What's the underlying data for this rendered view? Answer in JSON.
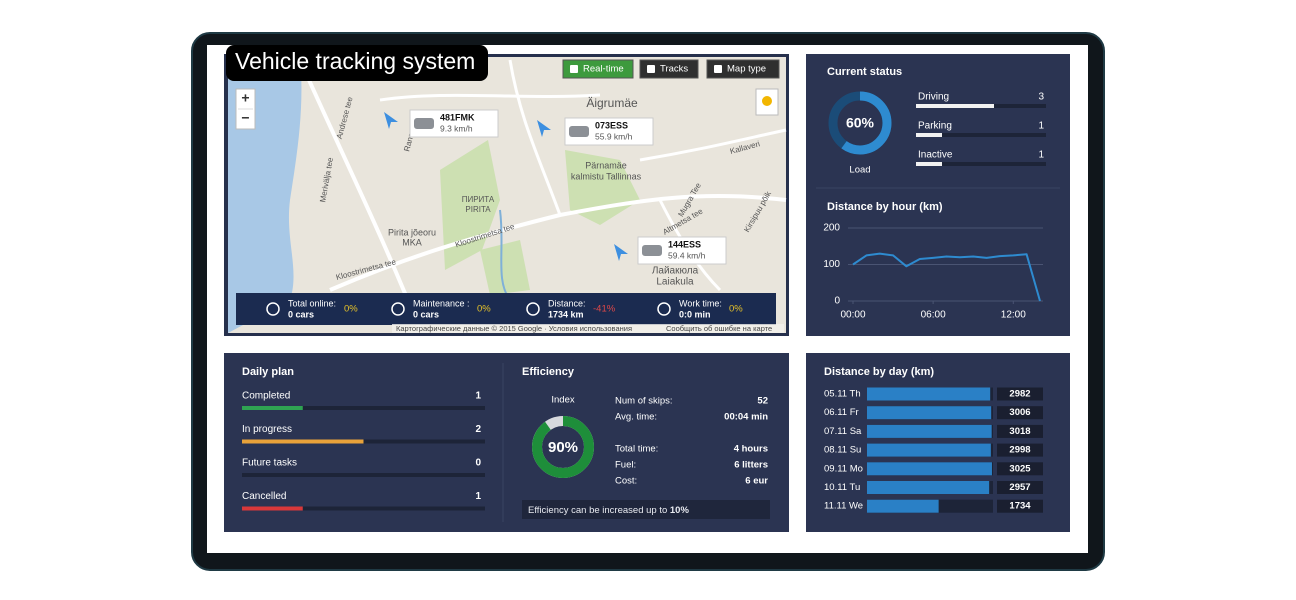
{
  "title": "Vehicle tracking system",
  "map": {
    "buttons": [
      "Real-time",
      "Tracks",
      "Map type"
    ],
    "zoom": [
      "+",
      "−"
    ],
    "places": [
      "Äigrumäe",
      "Pärnamäe",
      "kalmistu Tallinnas",
      "ПИРИТА",
      "PIRITA",
      "Pirita jõeoru",
      "MKA",
      "Kloostrimetsa tee",
      "Kloostrimetsa tee",
      "Лайакюла",
      "Laiakula",
      "Kallaveri",
      "Mugra Tee",
      "Altmetsa tee",
      "Kirsipuu põik",
      "Andrese tee",
      "Merivälja tee",
      "Ranna"
    ],
    "vehicles": [
      {
        "plate": "481FMK",
        "speed": "9.3 km/h"
      },
      {
        "plate": "073ESS",
        "speed": "55.9 km/h"
      },
      {
        "plate": "144ESS",
        "speed": "59.4 km/h"
      }
    ],
    "summary": [
      {
        "label": "Total online:",
        "value": "0 cars",
        "change": "0%"
      },
      {
        "label": "Maintenance :",
        "value": "0 cars",
        "change": "0%"
      },
      {
        "label": "Distance:",
        "value": "1734 km",
        "change": "-41%"
      },
      {
        "label": "Work time:",
        "value": "0:0 min",
        "change": "0%"
      }
    ],
    "attribution": "Картографические данные © 2015 Google · Условия использования",
    "report": "Сообщить об ошибке на карте"
  },
  "current_status": {
    "title": "Current status",
    "load": {
      "value": 60,
      "label": "60%",
      "caption": "Load"
    },
    "items": [
      {
        "name": "Driving",
        "value": 3
      },
      {
        "name": "Parking",
        "value": 1
      },
      {
        "name": "Inactive",
        "value": 1
      }
    ]
  },
  "distance_by_hour": {
    "type": "line",
    "title": "Distance by hour (km)",
    "x": [
      0,
      1,
      2,
      3,
      4,
      5,
      6,
      7,
      8,
      9,
      10,
      11,
      12,
      13,
      14
    ],
    "values": [
      100,
      125,
      130,
      125,
      95,
      115,
      118,
      122,
      120,
      122,
      118,
      123,
      125,
      128,
      0
    ],
    "xlim": [
      0,
      14
    ],
    "xticks": [
      {
        "value": 0,
        "label": "00:00"
      },
      {
        "value": 6,
        "label": "06:00"
      },
      {
        "value": 12,
        "label": "12:00"
      }
    ],
    "ylim": [
      0,
      200
    ],
    "yticks": [
      0,
      100,
      200
    ],
    "grid": true,
    "color": "#2e8bd0"
  },
  "daily_plan": {
    "title": "Daily plan",
    "items": [
      {
        "name": "Completed",
        "value": 1,
        "color": "#2fa352"
      },
      {
        "name": "In progress",
        "value": 2,
        "color": "#e8a23a"
      },
      {
        "name": "Future tasks",
        "value": 0,
        "color": "#8a8f99"
      },
      {
        "name": "Cancelled",
        "value": 1,
        "color": "#d9383a"
      }
    ]
  },
  "efficiency": {
    "title": "Efficiency",
    "index": {
      "caption": "Index",
      "value": 90,
      "label": "90%"
    },
    "stats": [
      {
        "label": "Num of skips:",
        "value": "52"
      },
      {
        "label": "Avg. time:",
        "value": "00:04 min"
      },
      {
        "label": "Total time:",
        "value": "4 hours"
      },
      {
        "label": "Fuel:",
        "value": "6 litters"
      },
      {
        "label": "Cost:",
        "value": "6 eur"
      }
    ],
    "note": "Efficiency can be increased up to ",
    "note_highlight": "10%"
  },
  "distance_by_day": {
    "type": "bar",
    "title": "Distance by day (km)",
    "categories": [
      "05.11 Th",
      "06.11 Fr",
      "07.11 Sa",
      "08.11 Su",
      "09.11 Mo",
      "10.11 Tu",
      "11.11 We"
    ],
    "values": [
      2982,
      3006,
      3018,
      2998,
      3025,
      2957,
      1734
    ],
    "xlim": [
      0,
      3050
    ],
    "color": "#2a80c6"
  }
}
